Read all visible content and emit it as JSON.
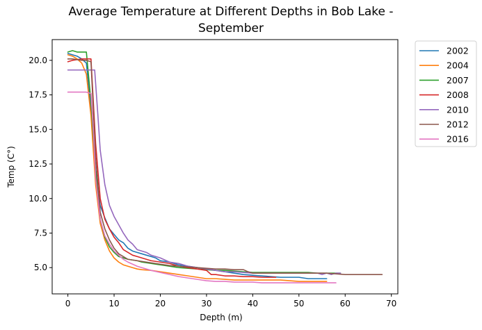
{
  "chart_data": {
    "type": "line",
    "title_lines": [
      "Average Temperature at Different Depths in Bob Lake -",
      "September"
    ],
    "xlabel": "Depth (m)",
    "ylabel": "Temp (C°)",
    "xlim": [
      -3.4,
      71.4
    ],
    "ylim": [
      3.1,
      21.5
    ],
    "xticks": [
      0,
      10,
      20,
      30,
      40,
      50,
      60,
      70
    ],
    "xtick_labels": [
      "0",
      "10",
      "20",
      "30",
      "40",
      "50",
      "60",
      "70"
    ],
    "yticks": [
      5.0,
      7.5,
      10.0,
      12.5,
      15.0,
      17.5,
      20.0
    ],
    "ytick_labels": [
      "5.0",
      "7.5",
      "10.0",
      "12.5",
      "15.0",
      "17.5",
      "20.0"
    ],
    "grid": false,
    "legend_position": "outside-top-right",
    "series": [
      {
        "name": "2002",
        "color": "#1f77b4",
        "x": [
          0,
          1,
          2,
          3,
          4,
          5,
          6,
          7,
          8,
          9,
          10,
          11,
          12,
          13,
          14,
          15,
          16,
          17,
          18,
          19,
          20,
          22,
          24,
          26,
          28,
          30,
          32,
          34,
          36,
          38,
          40,
          42,
          44,
          46,
          48,
          50,
          52,
          54,
          56
        ],
        "y": [
          20.5,
          20.4,
          20.3,
          20.1,
          19.8,
          16.5,
          12.0,
          9.5,
          8.6,
          7.8,
          7.4,
          7.0,
          6.8,
          6.4,
          6.2,
          6.1,
          6.0,
          5.9,
          5.8,
          5.7,
          5.5,
          5.4,
          5.2,
          5.1,
          5.0,
          4.9,
          4.8,
          4.7,
          4.6,
          4.5,
          4.45,
          4.4,
          4.35,
          4.3,
          4.3,
          4.3,
          4.2,
          4.2,
          4.2
        ]
      },
      {
        "name": "2004",
        "color": "#ff7f0e",
        "x": [
          0,
          1,
          2,
          3,
          4,
          5,
          6,
          7,
          8,
          9,
          10,
          11,
          12,
          13,
          14,
          15,
          16,
          18,
          20,
          22,
          24,
          26,
          28,
          30,
          32,
          34,
          36,
          38,
          40,
          42,
          44,
          46,
          48,
          50,
          52,
          54,
          56
        ],
        "y": [
          20.4,
          20.3,
          20.1,
          19.8,
          19.0,
          16.0,
          11.0,
          8.2,
          7.0,
          6.2,
          5.7,
          5.4,
          5.2,
          5.1,
          5.0,
          4.9,
          4.85,
          4.8,
          4.7,
          4.6,
          4.5,
          4.4,
          4.3,
          4.2,
          4.2,
          4.15,
          4.1,
          4.1,
          4.1,
          4.1,
          4.1,
          4.1,
          4.05,
          4.0,
          4.0,
          4.0,
          4.0
        ]
      },
      {
        "name": "2007",
        "color": "#2ca02c",
        "x": [
          0,
          1,
          2,
          3,
          4,
          5,
          6,
          7,
          8,
          9,
          10,
          11,
          12,
          13,
          14,
          15,
          16,
          18,
          20,
          22,
          24,
          26,
          28,
          30,
          32,
          34,
          36,
          38,
          40,
          42,
          44,
          46,
          48,
          50,
          52,
          54,
          56,
          58,
          59
        ],
        "y": [
          20.6,
          20.7,
          20.6,
          20.6,
          20.6,
          17.0,
          12.0,
          8.5,
          7.2,
          6.5,
          6.1,
          5.8,
          5.7,
          5.6,
          5.55,
          5.5,
          5.4,
          5.3,
          5.2,
          5.1,
          5.0,
          4.95,
          4.9,
          4.85,
          4.8,
          4.8,
          4.75,
          4.7,
          4.65,
          4.65,
          4.65,
          4.65,
          4.65,
          4.65,
          4.65,
          4.6,
          4.6,
          4.6,
          4.6
        ]
      },
      {
        "name": "2008",
        "color": "#d62728",
        "x": [
          0,
          1,
          2,
          3,
          4,
          5,
          6,
          7,
          8,
          9,
          10,
          11,
          12,
          13,
          14,
          15,
          16,
          18,
          20,
          22,
          24,
          26,
          28,
          30,
          31,
          32,
          34,
          36,
          38,
          40,
          42,
          44,
          45
        ],
        "y": [
          19.9,
          20.0,
          20.05,
          20.1,
          20.1,
          20.1,
          14.0,
          10.0,
          8.5,
          7.8,
          7.2,
          6.8,
          6.3,
          6.1,
          5.9,
          5.8,
          5.7,
          5.5,
          5.4,
          5.3,
          5.1,
          5.0,
          4.9,
          4.8,
          4.5,
          4.5,
          4.4,
          4.4,
          4.35,
          4.35,
          4.3,
          4.3,
          4.3
        ]
      },
      {
        "name": "2010",
        "color": "#9467bd",
        "x": [
          0,
          1,
          2,
          3,
          4,
          5,
          5.8,
          6.5,
          7,
          8,
          9,
          10,
          11,
          12,
          13,
          14,
          15,
          16,
          17,
          18,
          19,
          20,
          22,
          24,
          26,
          28,
          30,
          32,
          34,
          36,
          38,
          40,
          42,
          44,
          46,
          48,
          50,
          52,
          54,
          55,
          56,
          57,
          58,
          59
        ],
        "y": [
          19.3,
          19.3,
          19.3,
          19.3,
          19.3,
          19.3,
          19.3,
          16.0,
          13.5,
          11.0,
          9.5,
          8.7,
          8.1,
          7.5,
          7.0,
          6.7,
          6.3,
          6.2,
          6.1,
          5.9,
          5.8,
          5.7,
          5.4,
          5.3,
          5.1,
          5.0,
          4.9,
          4.8,
          4.7,
          4.7,
          4.65,
          4.6,
          4.6,
          4.6,
          4.6,
          4.6,
          4.6,
          4.6,
          4.6,
          4.5,
          4.6,
          4.5,
          4.6,
          4.6
        ]
      },
      {
        "name": "2012",
        "color": "#8c564b",
        "x": [
          0,
          1,
          2,
          3,
          4,
          5,
          6,
          7,
          8,
          9,
          10,
          11,
          12,
          13,
          14,
          15,
          16,
          18,
          20,
          22,
          24,
          26,
          28,
          30,
          32,
          34,
          36,
          38,
          39,
          40,
          42,
          44,
          46,
          48,
          50,
          52,
          54,
          56,
          58,
          60,
          62,
          64,
          66,
          68
        ],
        "y": [
          20.1,
          20.1,
          20.05,
          20.0,
          20.0,
          19.9,
          13.0,
          9.0,
          7.8,
          7.0,
          6.4,
          6.0,
          5.8,
          5.6,
          5.55,
          5.5,
          5.45,
          5.35,
          5.25,
          5.15,
          5.1,
          5.05,
          5.0,
          4.95,
          4.9,
          4.9,
          4.85,
          4.85,
          4.7,
          4.6,
          4.6,
          4.6,
          4.6,
          4.6,
          4.6,
          4.6,
          4.6,
          4.6,
          4.55,
          4.5,
          4.5,
          4.5,
          4.5,
          4.5
        ]
      },
      {
        "name": "2016",
        "color": "#e377c2",
        "x": [
          0,
          1,
          2,
          3,
          4,
          5,
          5.5,
          6,
          7,
          8,
          9,
          10,
          11,
          12,
          13,
          14,
          15,
          16,
          18,
          20,
          22,
          24,
          26,
          28,
          30,
          32,
          34,
          36,
          38,
          40,
          42,
          44,
          46,
          48,
          50,
          52,
          54,
          56,
          58
        ],
        "y": [
          17.7,
          17.7,
          17.7,
          17.7,
          17.7,
          17.6,
          15.0,
          11.5,
          8.5,
          7.3,
          6.7,
          6.2,
          5.9,
          5.6,
          5.4,
          5.25,
          5.1,
          5.0,
          4.8,
          4.65,
          4.5,
          4.35,
          4.25,
          4.15,
          4.05,
          4.0,
          4.0,
          3.95,
          3.95,
          3.95,
          3.9,
          3.9,
          3.9,
          3.9,
          3.9,
          3.9,
          3.9,
          3.9,
          3.9
        ]
      }
    ]
  }
}
